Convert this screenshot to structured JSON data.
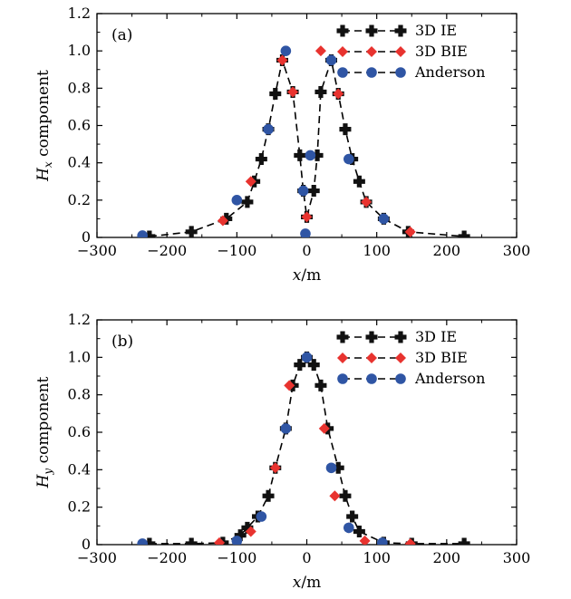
{
  "chart_data": [
    {
      "type": "scatter",
      "panel_label": "(a)",
      "xlabel_var": "x",
      "xlabel_unit": "/m",
      "ylabel_var": "H",
      "ylabel_sub": "x",
      "ylabel_rest": " component",
      "xlim": [
        -300,
        300
      ],
      "ylim": [
        0,
        1.2
      ],
      "xticks": [
        "−300",
        "−200",
        "−100",
        "0",
        "100",
        "200",
        "300"
      ],
      "xtick_values": [
        -300,
        -200,
        -100,
        0,
        100,
        200,
        300
      ],
      "yticks": [
        "0",
        "0.2",
        "0.4",
        "0.6",
        "0.8",
        "1.0",
        "1.2"
      ],
      "ytick_values": [
        0,
        0.2,
        0.4,
        0.6,
        0.8,
        1.0,
        1.2
      ],
      "legend_position": "top-right",
      "series": [
        {
          "name": "3D IE",
          "marker": "cross",
          "color": "#111111",
          "points": [
            [
              -225,
              0.005
            ],
            [
              -165,
              0.03
            ],
            [
              -115,
              0.1
            ],
            [
              -85,
              0.19
            ],
            [
              -75,
              0.3
            ],
            [
              -65,
              0.42
            ],
            [
              -55,
              0.58
            ],
            [
              -45,
              0.77
            ],
            [
              -35,
              0.95
            ],
            [
              -20,
              0.78
            ],
            [
              -10,
              0.44
            ],
            [
              -5,
              0.25
            ],
            [
              0,
              0.11
            ],
            [
              10,
              0.25
            ],
            [
              15,
              0.44
            ],
            [
              20,
              0.78
            ],
            [
              35,
              0.95
            ],
            [
              45,
              0.77
            ],
            [
              55,
              0.58
            ],
            [
              65,
              0.42
            ],
            [
              75,
              0.3
            ],
            [
              85,
              0.19
            ],
            [
              110,
              0.1
            ],
            [
              145,
              0.03
            ],
            [
              225,
              0.005
            ]
          ]
        },
        {
          "name": "3D BIE",
          "marker": "diamond",
          "color": "#e8332f",
          "points": [
            [
              -120,
              0.09
            ],
            [
              -80,
              0.3
            ],
            [
              -35,
              0.95
            ],
            [
              -20,
              0.78
            ],
            [
              0,
              0.11
            ],
            [
              20,
              1.0
            ],
            [
              45,
              0.77
            ],
            [
              85,
              0.19
            ],
            [
              148,
              0.03
            ]
          ]
        },
        {
          "name": "Anderson",
          "marker": "circle",
          "color": "#2f55a4",
          "points": [
            [
              -235,
              0.01
            ],
            [
              -100,
              0.2
            ],
            [
              -55,
              0.58
            ],
            [
              -30,
              1.0
            ],
            [
              -5,
              0.25
            ],
            [
              -2,
              0.02
            ],
            [
              5,
              0.44
            ],
            [
              35,
              0.95
            ],
            [
              60,
              0.42
            ],
            [
              110,
              0.1
            ]
          ]
        }
      ]
    },
    {
      "type": "scatter",
      "panel_label": "(b)",
      "xlabel_var": "x",
      "xlabel_unit": "/m",
      "ylabel_var": "H",
      "ylabel_sub": "y",
      "ylabel_rest": " component",
      "xlim": [
        -300,
        300
      ],
      "ylim": [
        0,
        1.2
      ],
      "xticks": [
        "−300",
        "−200",
        "−100",
        "0",
        "100",
        "200",
        "300"
      ],
      "xtick_values": [
        -300,
        -200,
        -100,
        0,
        100,
        200,
        300
      ],
      "yticks": [
        "0",
        "0.2",
        "0.4",
        "0.6",
        "0.8",
        "1.0",
        "1.2"
      ],
      "ytick_values": [
        0,
        0.2,
        0.4,
        0.6,
        0.8,
        1.0,
        1.2
      ],
      "legend_position": "top-right",
      "series": [
        {
          "name": "3D IE",
          "marker": "cross",
          "color": "#111111",
          "points": [
            [
              -225,
              0.005
            ],
            [
              -165,
              0.005
            ],
            [
              -120,
              0.01
            ],
            [
              -95,
              0.05
            ],
            [
              -85,
              0.09
            ],
            [
              -70,
              0.15
            ],
            [
              -55,
              0.26
            ],
            [
              -45,
              0.41
            ],
            [
              -30,
              0.62
            ],
            [
              -20,
              0.85
            ],
            [
              -10,
              0.96
            ],
            [
              0,
              1.0
            ],
            [
              10,
              0.96
            ],
            [
              20,
              0.85
            ],
            [
              30,
              0.62
            ],
            [
              45,
              0.41
            ],
            [
              55,
              0.26
            ],
            [
              65,
              0.15
            ],
            [
              75,
              0.07
            ],
            [
              110,
              0.01
            ],
            [
              150,
              0.005
            ],
            [
              225,
              0.005
            ]
          ]
        },
        {
          "name": "3D BIE",
          "marker": "diamond",
          "color": "#e8332f",
          "points": [
            [
              -125,
              0.01
            ],
            [
              -80,
              0.07
            ],
            [
              -45,
              0.41
            ],
            [
              -25,
              0.85
            ],
            [
              0,
              1.0
            ],
            [
              25,
              0.62
            ],
            [
              40,
              0.26
            ],
            [
              60,
              0.09
            ],
            [
              83,
              0.02
            ],
            [
              148,
              0.005
            ]
          ]
        },
        {
          "name": "Anderson",
          "marker": "circle",
          "color": "#2f55a4",
          "points": [
            [
              -235,
              0.005
            ],
            [
              -100,
              0.02
            ],
            [
              -65,
              0.15
            ],
            [
              -30,
              0.62
            ],
            [
              0,
              1.0
            ],
            [
              35,
              0.41
            ],
            [
              60,
              0.09
            ],
            [
              108,
              0.01
            ]
          ]
        }
      ]
    }
  ]
}
